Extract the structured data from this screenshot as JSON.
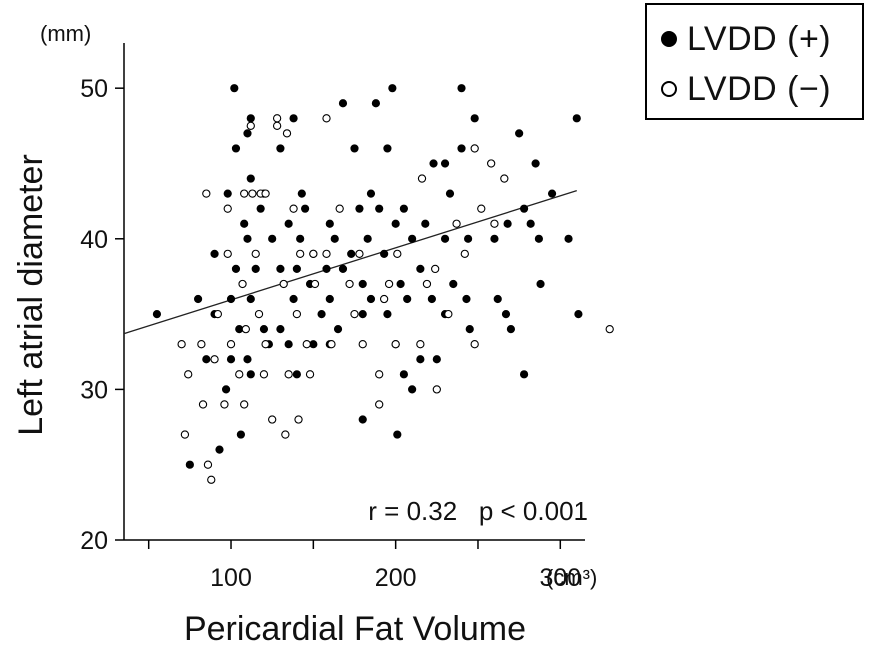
{
  "chart_data": {
    "type": "scatter",
    "title": "",
    "xlabel": "Pericardial Fat Volume",
    "ylabel": "Left atrial diameter",
    "x_unit": "(cm³)",
    "y_unit": "(mm)",
    "xlim": [
      35,
      315
    ],
    "ylim": [
      20,
      53
    ],
    "x_ticks": [
      100,
      200,
      300
    ],
    "x_ticks_unlabeled": [
      150,
      250
    ],
    "y_ticks": [
      20,
      30,
      40,
      50
    ],
    "grid": false,
    "legend_position": "top-right",
    "annotation": "r = 0.32   p < 0.001",
    "regression_line": {
      "x": [
        35,
        310
      ],
      "y": [
        33.7,
        43.2
      ]
    },
    "series": [
      {
        "name": "LVDD (+)",
        "marker": "filled",
        "color": "#000000",
        "points": [
          [
            102,
            50
          ],
          [
            112,
            48
          ],
          [
            110,
            47
          ],
          [
            138,
            48
          ],
          [
            168,
            49
          ],
          [
            188,
            49
          ],
          [
            198,
            50
          ],
          [
            240,
            50
          ],
          [
            248,
            48
          ],
          [
            103,
            46
          ],
          [
            130,
            46
          ],
          [
            175,
            46
          ],
          [
            195,
            46
          ],
          [
            223,
            45
          ],
          [
            230,
            45
          ],
          [
            240,
            46
          ],
          [
            285,
            45
          ],
          [
            310,
            48
          ],
          [
            98,
            43
          ],
          [
            112,
            44
          ],
          [
            120,
            43
          ],
          [
            143,
            43
          ],
          [
            185,
            43
          ],
          [
            190,
            42
          ],
          [
            205,
            42
          ],
          [
            233,
            43
          ],
          [
            275,
            47
          ],
          [
            295,
            43
          ],
          [
            90,
            39
          ],
          [
            108,
            41
          ],
          [
            118,
            42
          ],
          [
            135,
            41
          ],
          [
            145,
            42
          ],
          [
            160,
            41
          ],
          [
            178,
            42
          ],
          [
            200,
            41
          ],
          [
            218,
            41
          ],
          [
            260,
            40
          ],
          [
            268,
            41
          ],
          [
            278,
            42
          ],
          [
            282,
            41
          ],
          [
            287,
            40
          ],
          [
            305,
            40
          ],
          [
            110,
            40
          ],
          [
            125,
            40
          ],
          [
            142,
            40
          ],
          [
            150,
            39
          ],
          [
            163,
            40
          ],
          [
            173,
            39
          ],
          [
            183,
            40
          ],
          [
            193,
            39
          ],
          [
            210,
            40
          ],
          [
            230,
            40
          ],
          [
            244,
            40
          ],
          [
            103,
            38
          ],
          [
            115,
            38
          ],
          [
            130,
            38
          ],
          [
            140,
            38
          ],
          [
            158,
            38
          ],
          [
            168,
            38
          ],
          [
            180,
            37
          ],
          [
            203,
            37
          ],
          [
            215,
            38
          ],
          [
            235,
            37
          ],
          [
            55,
            35
          ],
          [
            80,
            36
          ],
          [
            100,
            36
          ],
          [
            112,
            36
          ],
          [
            138,
            36
          ],
          [
            148,
            37
          ],
          [
            160,
            36
          ],
          [
            185,
            36
          ],
          [
            207,
            36
          ],
          [
            222,
            36
          ],
          [
            243,
            36
          ],
          [
            262,
            36
          ],
          [
            267,
            35
          ],
          [
            288,
            37
          ],
          [
            311,
            35
          ],
          [
            90,
            35
          ],
          [
            105,
            34
          ],
          [
            120,
            34
          ],
          [
            130,
            34
          ],
          [
            155,
            35
          ],
          [
            165,
            34
          ],
          [
            180,
            35
          ],
          [
            195,
            35
          ],
          [
            230,
            35
          ],
          [
            245,
            34
          ],
          [
            270,
            34
          ],
          [
            85,
            32
          ],
          [
            100,
            32
          ],
          [
            110,
            32
          ],
          [
            123,
            33
          ],
          [
            135,
            33
          ],
          [
            150,
            33
          ],
          [
            160,
            33
          ],
          [
            200,
            33
          ],
          [
            215,
            32
          ],
          [
            225,
            32
          ],
          [
            97,
            30
          ],
          [
            112,
            31
          ],
          [
            140,
            31
          ],
          [
            205,
            31
          ],
          [
            210,
            30
          ],
          [
            278,
            31
          ],
          [
            75,
            25
          ],
          [
            93,
            26
          ],
          [
            106,
            27
          ],
          [
            180,
            28
          ],
          [
            201,
            27
          ]
        ]
      },
      {
        "name": "LVDD (−)",
        "marker": "open",
        "color": "#000000",
        "points": [
          [
            112,
            47.5
          ],
          [
            128,
            48
          ],
          [
            128,
            47.5
          ],
          [
            134,
            47
          ],
          [
            158,
            48
          ],
          [
            85,
            43
          ],
          [
            108,
            43
          ],
          [
            113,
            43
          ],
          [
            118,
            43
          ],
          [
            121,
            43
          ],
          [
            216,
            44
          ],
          [
            258,
            45
          ],
          [
            266,
            44
          ],
          [
            248,
            46
          ],
          [
            98,
            42
          ],
          [
            138,
            42
          ],
          [
            166,
            42
          ],
          [
            252,
            42
          ],
          [
            260,
            41
          ],
          [
            237,
            41
          ],
          [
            98,
            39
          ],
          [
            115,
            39
          ],
          [
            142,
            39
          ],
          [
            150,
            39
          ],
          [
            158,
            39
          ],
          [
            178,
            39
          ],
          [
            201,
            39
          ],
          [
            224,
            38
          ],
          [
            242,
            39
          ],
          [
            107,
            37
          ],
          [
            132,
            37
          ],
          [
            151,
            37
          ],
          [
            172,
            37
          ],
          [
            196,
            37
          ],
          [
            219,
            37
          ],
          [
            92,
            35
          ],
          [
            117,
            35
          ],
          [
            140,
            35
          ],
          [
            175,
            35
          ],
          [
            193,
            36
          ],
          [
            232,
            35
          ],
          [
            70,
            33
          ],
          [
            82,
            33
          ],
          [
            100,
            33
          ],
          [
            109,
            34
          ],
          [
            121,
            33
          ],
          [
            146,
            33
          ],
          [
            161,
            33
          ],
          [
            180,
            33
          ],
          [
            200,
            33
          ],
          [
            215,
            33
          ],
          [
            248,
            33
          ],
          [
            330,
            34
          ],
          [
            74,
            31
          ],
          [
            90,
            32
          ],
          [
            105,
            31
          ],
          [
            120,
            31
          ],
          [
            135,
            31
          ],
          [
            148,
            31
          ],
          [
            190,
            31
          ],
          [
            225,
            30
          ],
          [
            83,
            29
          ],
          [
            96,
            29
          ],
          [
            108,
            29
          ],
          [
            125,
            28
          ],
          [
            141,
            28
          ],
          [
            190,
            29
          ],
          [
            72,
            27
          ],
          [
            133,
            27
          ],
          [
            86,
            25
          ],
          [
            88,
            24
          ]
        ]
      }
    ]
  }
}
